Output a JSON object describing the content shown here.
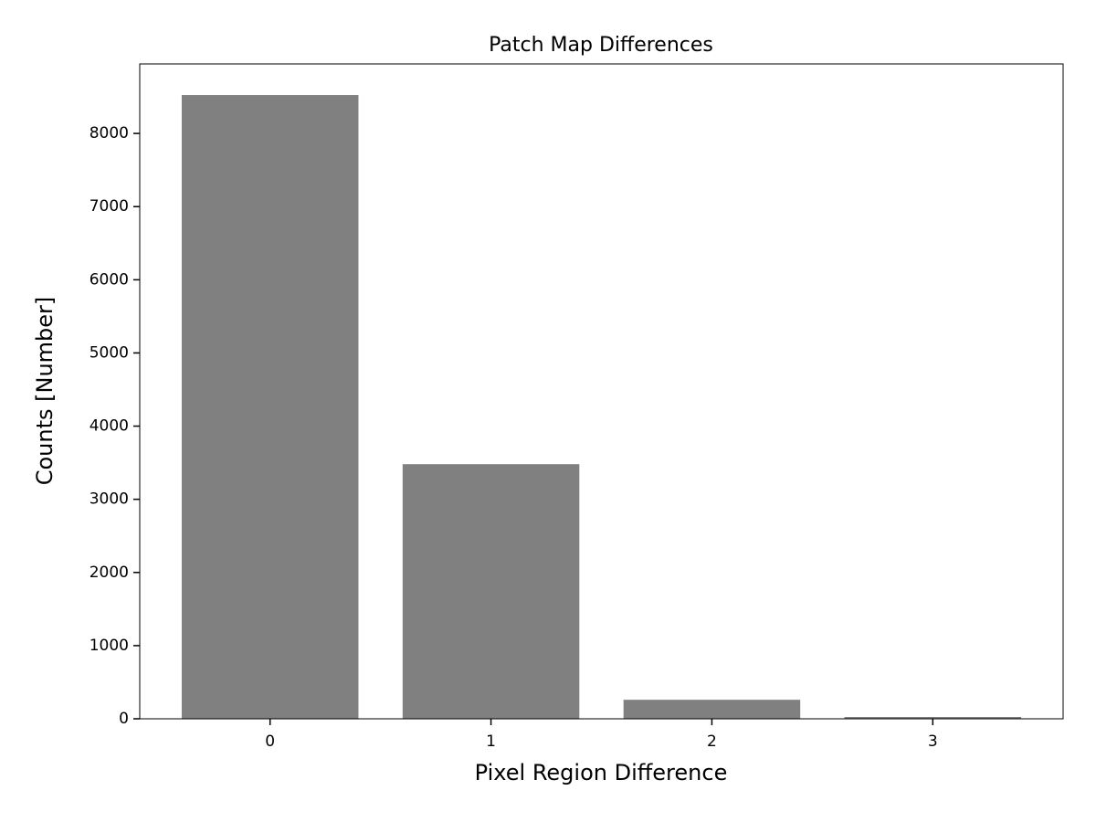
{
  "chart_data": {
    "type": "bar",
    "title": "Patch Map Differences",
    "x_label": "Pixel Region Difference",
    "y_label": "Counts [Number]",
    "x": [
      0,
      1,
      2,
      3
    ],
    "values": [
      8525,
      3480,
      260,
      25
    ],
    "color": "#808080",
    "xlim": [
      -0.59,
      3.59
    ],
    "xticks": [
      0,
      1,
      2,
      3
    ],
    "ylim": [
      0,
      8950
    ],
    "yticks": [
      0,
      1000,
      2000,
      3000,
      4000,
      5000,
      6000,
      7000,
      8000
    ],
    "bar_width": 0.8,
    "grid": false
  }
}
